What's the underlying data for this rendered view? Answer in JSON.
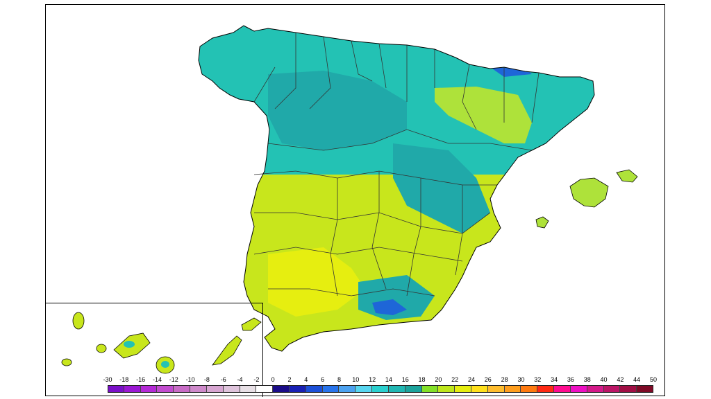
{
  "map": {
    "regions": [
      {
        "name": "Iberian Peninsula",
        "kind": "mainland"
      },
      {
        "name": "Balearic Islands",
        "kind": "islands"
      },
      {
        "name": "Canary Islands",
        "kind": "inset"
      }
    ],
    "zones": [
      {
        "id": "north",
        "color": "#23c2b4"
      },
      {
        "id": "north-dark",
        "color": "#20a9a9"
      },
      {
        "id": "south",
        "color": "#c8e61c"
      },
      {
        "id": "south-yellow",
        "color": "#e6ee10"
      },
      {
        "id": "ebro",
        "color": "#aee23a"
      },
      {
        "id": "high-terrain",
        "color": "#1e66d8"
      }
    ]
  },
  "legend": {
    "ticks": [
      "-30",
      "-18",
      "-16",
      "-14",
      "-12",
      "-10",
      "-8",
      "-6",
      "-4",
      "-2",
      "0",
      "2",
      "4",
      "6",
      "8",
      "10",
      "12",
      "14",
      "16",
      "18",
      "20",
      "22",
      "24",
      "26",
      "28",
      "30",
      "32",
      "34",
      "36",
      "38",
      "40",
      "42",
      "44",
      "50"
    ],
    "colors": [
      "#7a10c8",
      "#9b18d4",
      "#b42ad6",
      "#c24ccf",
      "#c86cc6",
      "#cf8acb",
      "#d8a6d2",
      "#dfc4dc",
      "#e8e0e6",
      "#ffffff",
      "#1a0c88",
      "#1820b4",
      "#1c50d8",
      "#2874ec",
      "#4ca2f0",
      "#58d6f0",
      "#2bd0cf",
      "#21b7b3",
      "#1ca39c",
      "#83e028",
      "#bee61c",
      "#e6ee10",
      "#ffe01c",
      "#ffbd2e",
      "#ff9e1e",
      "#ff7a10",
      "#ff2a14",
      "#ff0c90",
      "#ee10c4",
      "#d41a8a",
      "#bb1566",
      "#a00e44",
      "#7e0a26"
    ]
  }
}
